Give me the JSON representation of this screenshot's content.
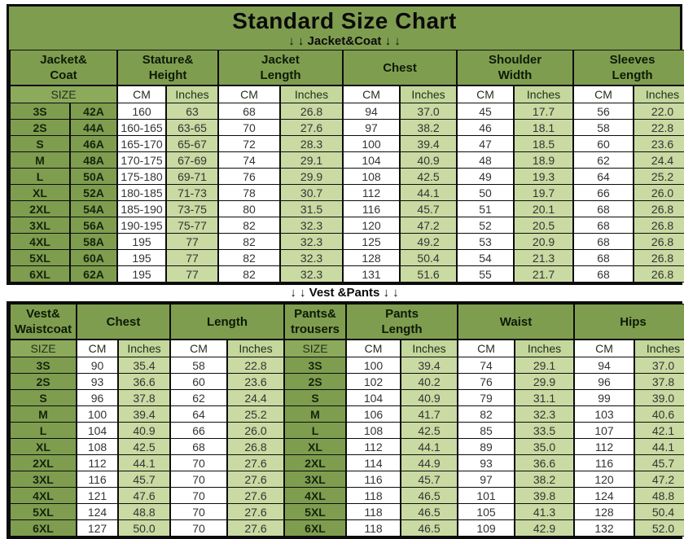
{
  "title": "Standard Size Chart",
  "labels": {
    "size": "SIZE",
    "cm": "CM",
    "inches": "Inches"
  },
  "colors": {
    "header_green": "#7f9d4f",
    "subheader_green": "#8caa5c",
    "light_green": "#c9daa2",
    "cell_white": "#ffffff",
    "border_black": "#0c0c0c"
  },
  "jacket_section": {
    "banner": "↓ ↓  Jacket&Coat ↓ ↓",
    "groups": [
      "Jacket&\nCoat",
      "Stature&\nHeight",
      "Jacket\nLength",
      "Chest",
      "Shoulder\nWidth",
      "Sleeves\nLength"
    ],
    "col_types": [
      "size",
      "size2",
      "cm",
      "in",
      "cm",
      "in",
      "cm",
      "in",
      "cm",
      "in",
      "cm",
      "in"
    ],
    "rows": [
      [
        "3S",
        "42A",
        "160",
        "63",
        "68",
        "26.8",
        "94",
        "37.0",
        "45",
        "17.7",
        "56",
        "22.0"
      ],
      [
        "2S",
        "44A",
        "160-165",
        "63-65",
        "70",
        "27.6",
        "97",
        "38.2",
        "46",
        "18.1",
        "58",
        "22.8"
      ],
      [
        "S",
        "46A",
        "165-170",
        "65-67",
        "72",
        "28.3",
        "100",
        "39.4",
        "47",
        "18.5",
        "60",
        "23.6"
      ],
      [
        "M",
        "48A",
        "170-175",
        "67-69",
        "74",
        "29.1",
        "104",
        "40.9",
        "48",
        "18.9",
        "62",
        "24.4"
      ],
      [
        "L",
        "50A",
        "175-180",
        "69-71",
        "76",
        "29.9",
        "108",
        "42.5",
        "49",
        "19.3",
        "64",
        "25.2"
      ],
      [
        "XL",
        "52A",
        "180-185",
        "71-73",
        "78",
        "30.7",
        "112",
        "44.1",
        "50",
        "19.7",
        "66",
        "26.0"
      ],
      [
        "2XL",
        "54A",
        "185-190",
        "73-75",
        "80",
        "31.5",
        "116",
        "45.7",
        "51",
        "20.1",
        "68",
        "26.8"
      ],
      [
        "3XL",
        "56A",
        "190-195",
        "75-77",
        "82",
        "32.3",
        "120",
        "47.2",
        "52",
        "20.5",
        "68",
        "26.8"
      ],
      [
        "4XL",
        "58A",
        "195",
        "77",
        "82",
        "32.3",
        "125",
        "49.2",
        "53",
        "20.9",
        "68",
        "26.8"
      ],
      [
        "5XL",
        "60A",
        "195",
        "77",
        "82",
        "32.3",
        "128",
        "50.4",
        "54",
        "21.3",
        "68",
        "26.8"
      ],
      [
        "6XL",
        "62A",
        "195",
        "77",
        "82",
        "32.3",
        "131",
        "51.6",
        "55",
        "21.7",
        "68",
        "26.8"
      ]
    ]
  },
  "vest_section": {
    "banner": "↓ ↓  Vest &Pants ↓ ↓",
    "groups": [
      "Vest&\nWaistcoat",
      "Chest",
      "Length",
      "Pants&\ntrousers",
      "Pants\nLength",
      "Waist",
      "Hips"
    ],
    "col_types": [
      "size",
      "cm",
      "in",
      "cm",
      "in",
      "size2",
      "cm",
      "in",
      "cm",
      "in",
      "cm",
      "in"
    ],
    "rows": [
      [
        "3S",
        "90",
        "35.4",
        "58",
        "22.8",
        "3S",
        "100",
        "39.4",
        "74",
        "29.1",
        "94",
        "37.0"
      ],
      [
        "2S",
        "93",
        "36.6",
        "60",
        "23.6",
        "2S",
        "102",
        "40.2",
        "76",
        "29.9",
        "96",
        "37.8"
      ],
      [
        "S",
        "96",
        "37.8",
        "62",
        "24.4",
        "S",
        "104",
        "40.9",
        "79",
        "31.1",
        "99",
        "39.0"
      ],
      [
        "M",
        "100",
        "39.4",
        "64",
        "25.2",
        "M",
        "106",
        "41.7",
        "82",
        "32.3",
        "103",
        "40.6"
      ],
      [
        "L",
        "104",
        "40.9",
        "66",
        "26.0",
        "L",
        "108",
        "42.5",
        "85",
        "33.5",
        "107",
        "42.1"
      ],
      [
        "XL",
        "108",
        "42.5",
        "68",
        "26.8",
        "XL",
        "112",
        "44.1",
        "89",
        "35.0",
        "112",
        "44.1"
      ],
      [
        "2XL",
        "112",
        "44.1",
        "70",
        "27.6",
        "2XL",
        "114",
        "44.9",
        "93",
        "36.6",
        "116",
        "45.7"
      ],
      [
        "3XL",
        "116",
        "45.7",
        "70",
        "27.6",
        "3XL",
        "116",
        "45.7",
        "97",
        "38.2",
        "120",
        "47.2"
      ],
      [
        "4XL",
        "121",
        "47.6",
        "70",
        "27.6",
        "4XL",
        "118",
        "46.5",
        "101",
        "39.8",
        "124",
        "48.8"
      ],
      [
        "5XL",
        "124",
        "48.8",
        "70",
        "27.6",
        "5XL",
        "118",
        "46.5",
        "105",
        "41.3",
        "128",
        "50.4"
      ],
      [
        "6XL",
        "127",
        "50.0",
        "70",
        "27.6",
        "6XL",
        "118",
        "46.5",
        "109",
        "42.9",
        "132",
        "52.0"
      ]
    ]
  }
}
